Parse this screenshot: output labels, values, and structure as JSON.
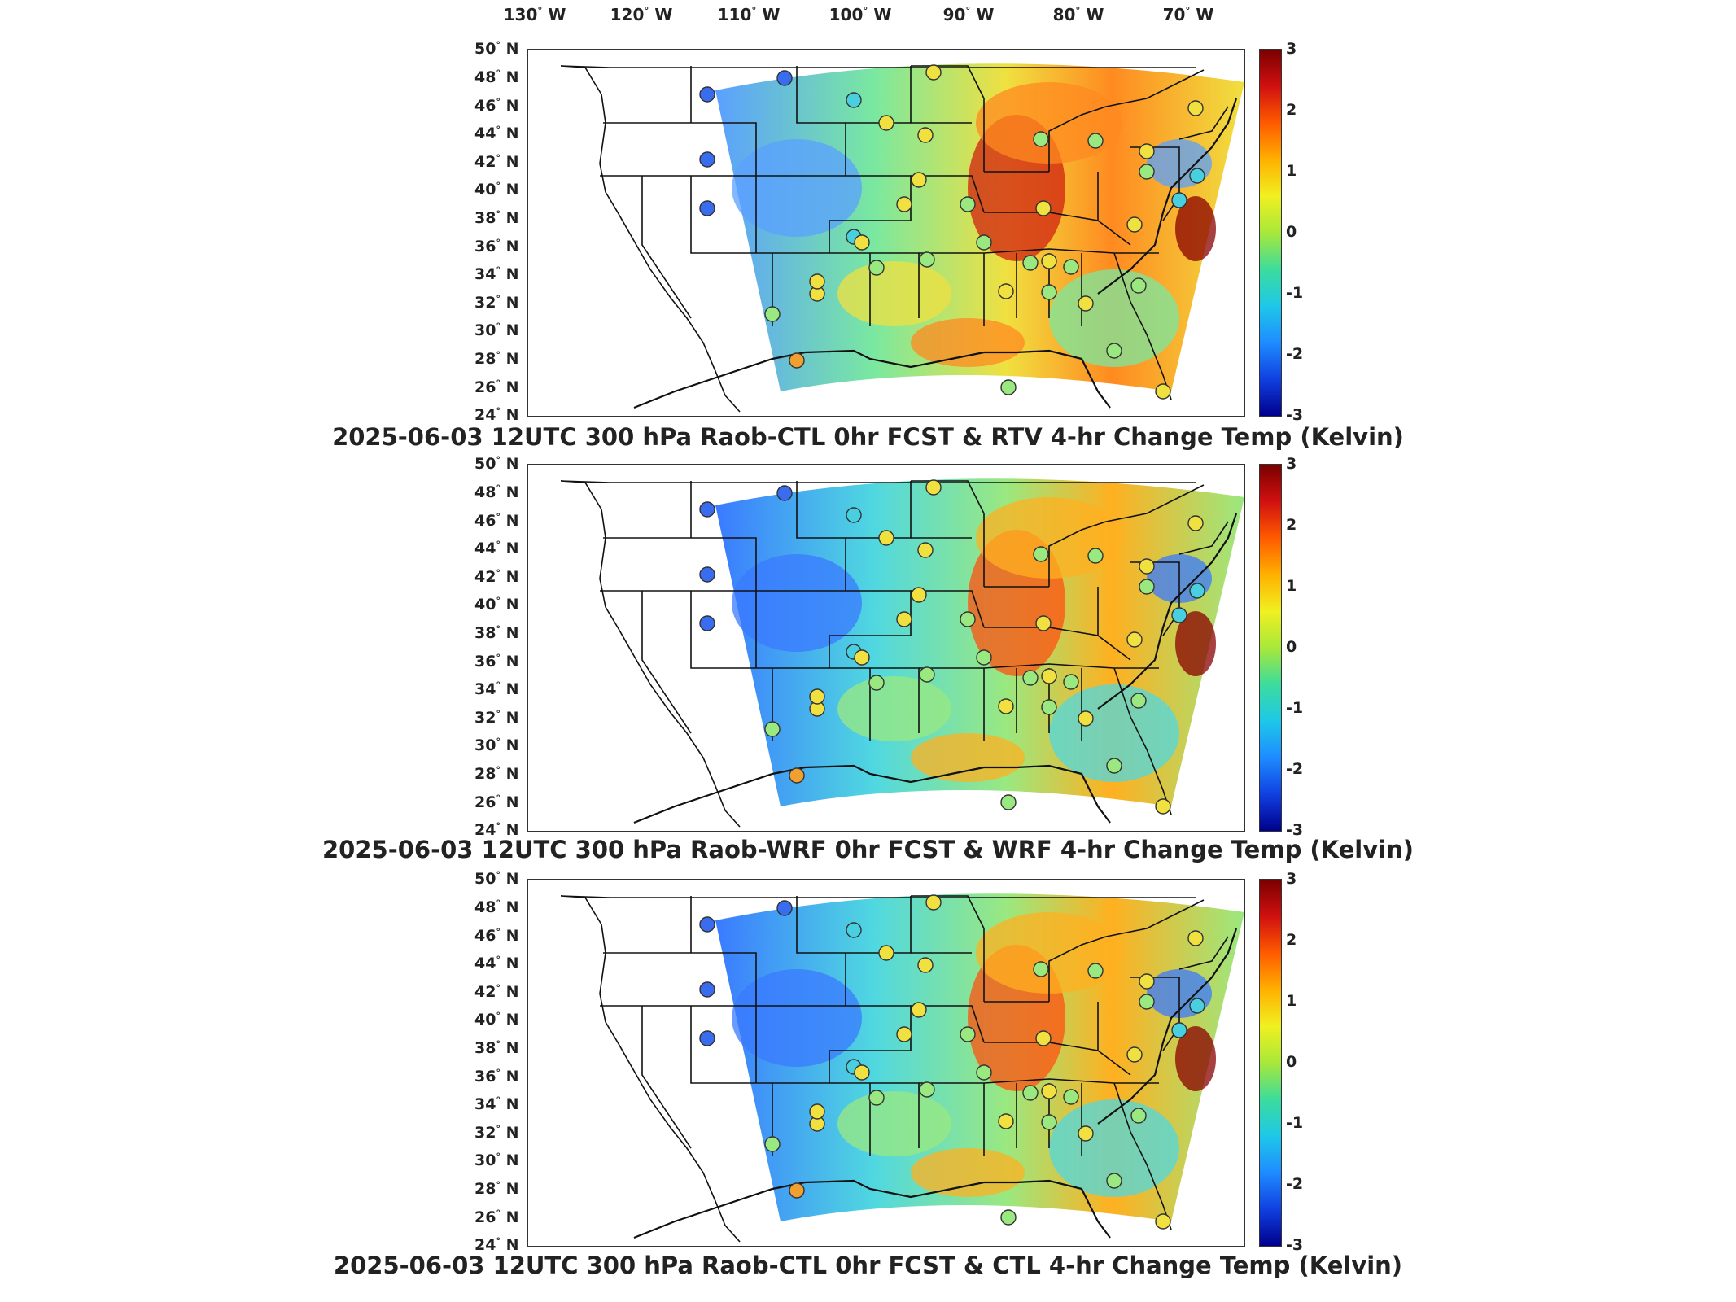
{
  "longitude_labels": [
    {
      "deg": "130",
      "dir": "W"
    },
    {
      "deg": "120",
      "dir": "W"
    },
    {
      "deg": "110",
      "dir": "W"
    },
    {
      "deg": "100",
      "dir": "W"
    },
    {
      "deg": "90",
      "dir": "W"
    },
    {
      "deg": "80",
      "dir": "W"
    },
    {
      "deg": "70",
      "dir": "W"
    }
  ],
  "latitude_labels": [
    {
      "deg": "50",
      "dir": "N"
    },
    {
      "deg": "48",
      "dir": "N"
    },
    {
      "deg": "46",
      "dir": "N"
    },
    {
      "deg": "44",
      "dir": "N"
    },
    {
      "deg": "42",
      "dir": "N"
    },
    {
      "deg": "40",
      "dir": "N"
    },
    {
      "deg": "38",
      "dir": "N"
    },
    {
      "deg": "36",
      "dir": "N"
    },
    {
      "deg": "34",
      "dir": "N"
    },
    {
      "deg": "32",
      "dir": "N"
    },
    {
      "deg": "30",
      "dir": "N"
    },
    {
      "deg": "28",
      "dir": "N"
    },
    {
      "deg": "26",
      "dir": "N"
    },
    {
      "deg": "24",
      "dir": "N"
    }
  ],
  "colorbar": {
    "ticks": [
      "3",
      "2",
      "1",
      "0",
      "-1",
      "-2",
      "-3"
    ],
    "colors": [
      "#7a0000",
      "#d01010",
      "#ff5a00",
      "#ffb000",
      "#f0f020",
      "#a8e83a",
      "#3cdc9c",
      "#1ec8e8",
      "#1e8cff",
      "#1040e0",
      "#00008c"
    ]
  },
  "panels": [
    {
      "title": "2025-06-03 12UTC 300 hPa Raob-CTL 0hr FCST & RTV 4-hr Change Temp (Kelvin)",
      "dominant_colors": [
        "#5aa0ff",
        "#7ae8a0",
        "#f0e040",
        "#ff8a20",
        "#d02010"
      ]
    },
    {
      "title": "2025-06-03 12UTC 300 hPa Raob-WRF 0hr FCST & WRF 4-hr Change Temp (Kelvin)",
      "dominant_colors": [
        "#3a7aff",
        "#50d8e0",
        "#9ae880",
        "#ffb020",
        "#ff5010"
      ]
    },
    {
      "title": "2025-06-03 12UTC 300 hPa Raob-CTL 0hr FCST & CTL 4-hr Change Temp (Kelvin)",
      "dominant_colors": [
        "#3a7aff",
        "#50d8e0",
        "#9ae880",
        "#ffb020",
        "#ff5010"
      ]
    }
  ]
}
